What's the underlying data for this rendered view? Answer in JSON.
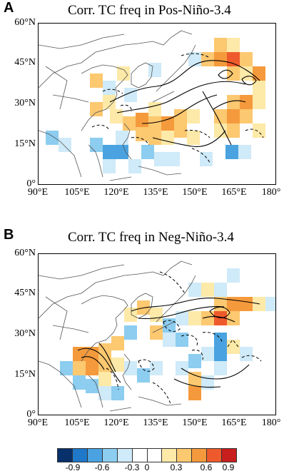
{
  "panels": [
    {
      "letter": "A",
      "title": "Corr. TC freq in Pos-Niño-3.4"
    },
    {
      "letter": "B",
      "title": "Corr. TC freq in Neg-Niño-3.4"
    }
  ],
  "axes": {
    "x_ticks": [
      "90°E",
      "105°E",
      "120°E",
      "135°E",
      "150°E",
      "165°E",
      "180°"
    ],
    "y_ticks": [
      "60°N",
      "45°N",
      "30°N",
      "15°N",
      "0°"
    ]
  },
  "colorbar": {
    "labels": [
      "-0.9",
      "-0.6",
      "-0.3",
      "0",
      "0.3",
      "0.6",
      "0.9"
    ],
    "colors": [
      "#08306b",
      "#1f78c8",
      "#4aa3e0",
      "#8ccdf0",
      "#cfeaf8",
      "#ffffff",
      "#ffffff",
      "#fde9a8",
      "#fcc870",
      "#f59a3c",
      "#ef5a2c",
      "#c81e1e"
    ]
  },
  "legend_colors": {
    "pos_light": "#fde9a8",
    "pos_mid": "#fcc870",
    "pos_strong": "#f59a3c",
    "pos_max": "#ef5a2c",
    "neg_light": "#cfeaf8",
    "neg_mid": "#8ccdf0",
    "neg_strong": "#4aa3e0",
    "neg_max": "#1f78c8"
  }
}
